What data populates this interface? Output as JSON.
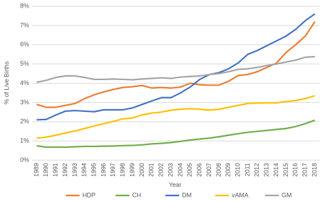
{
  "chart_data": {
    "type": "line",
    "x_label": "Year",
    "y_label": "% of Live Births",
    "categories": [
      "1989",
      "1990",
      "1991",
      "1992",
      "1993",
      "1994",
      "1995",
      "1996",
      "1997",
      "1998",
      "1999",
      "2000",
      "2001",
      "2002",
      "2003",
      "2004",
      "2005",
      "2006",
      "2007",
      "2008",
      "2009",
      "2010",
      "2011",
      "2012",
      "2013",
      "2014",
      "2015",
      "2016",
      "2017",
      "2018"
    ],
    "series": [
      {
        "name": "HDP",
        "color": "#ed7d31",
        "values": [
          2.9,
          2.75,
          2.75,
          2.85,
          2.95,
          3.2,
          3.4,
          3.55,
          3.68,
          3.78,
          3.82,
          3.88,
          3.75,
          3.78,
          3.75,
          3.8,
          4.0,
          3.92,
          3.9,
          3.9,
          4.1,
          4.4,
          4.45,
          4.6,
          4.82,
          5.05,
          5.6,
          6.0,
          6.45,
          7.2
        ]
      },
      {
        "name": "CH",
        "color": "#70ad47",
        "values": [
          0.75,
          0.68,
          0.68,
          0.68,
          0.7,
          0.72,
          0.72,
          0.73,
          0.74,
          0.76,
          0.77,
          0.8,
          0.85,
          0.88,
          0.92,
          0.98,
          1.05,
          1.1,
          1.15,
          1.22,
          1.3,
          1.38,
          1.45,
          1.5,
          1.55,
          1.6,
          1.65,
          1.75,
          1.9,
          2.08
        ]
      },
      {
        "name": "DM",
        "color": "#4472c4",
        "values": [
          2.1,
          2.12,
          2.35,
          2.55,
          2.58,
          2.55,
          2.52,
          2.62,
          2.62,
          2.62,
          2.72,
          2.9,
          3.08,
          3.25,
          3.25,
          3.5,
          3.8,
          4.2,
          4.45,
          4.55,
          4.75,
          5.05,
          5.5,
          5.7,
          5.95,
          6.2,
          6.45,
          6.8,
          7.25,
          7.6
        ]
      },
      {
        "name": "vAMA",
        "color": "#ffc000",
        "values": [
          1.15,
          1.2,
          1.3,
          1.42,
          1.52,
          1.65,
          1.78,
          1.9,
          2.02,
          2.15,
          2.2,
          2.35,
          2.45,
          2.5,
          2.6,
          2.65,
          2.68,
          2.65,
          2.6,
          2.65,
          2.75,
          2.85,
          2.95,
          2.97,
          2.98,
          2.98,
          3.05,
          3.1,
          3.2,
          3.35
        ]
      },
      {
        "name": "GM",
        "color": "#a5a5a5",
        "values": [
          4.05,
          4.15,
          4.3,
          4.38,
          4.38,
          4.3,
          4.2,
          4.2,
          4.22,
          4.2,
          4.18,
          4.22,
          4.25,
          4.28,
          4.25,
          4.32,
          4.35,
          4.38,
          4.45,
          4.5,
          4.6,
          4.72,
          4.75,
          4.82,
          4.92,
          5.0,
          5.1,
          5.2,
          5.35,
          5.38
        ]
      }
    ],
    "ylim": [
      0,
      8
    ],
    "yticks": [
      {
        "value": 0,
        "label": "0%"
      },
      {
        "value": 1,
        "label": "1%"
      },
      {
        "value": 2,
        "label": "2%"
      },
      {
        "value": 3,
        "label": "3%"
      },
      {
        "value": 4,
        "label": "4%"
      },
      {
        "value": 5,
        "label": "5%"
      },
      {
        "value": 6,
        "label": "6%"
      },
      {
        "value": 7,
        "label": "7%"
      },
      {
        "value": 8,
        "label": "8%"
      }
    ],
    "grid": true,
    "legend": "bottom"
  }
}
